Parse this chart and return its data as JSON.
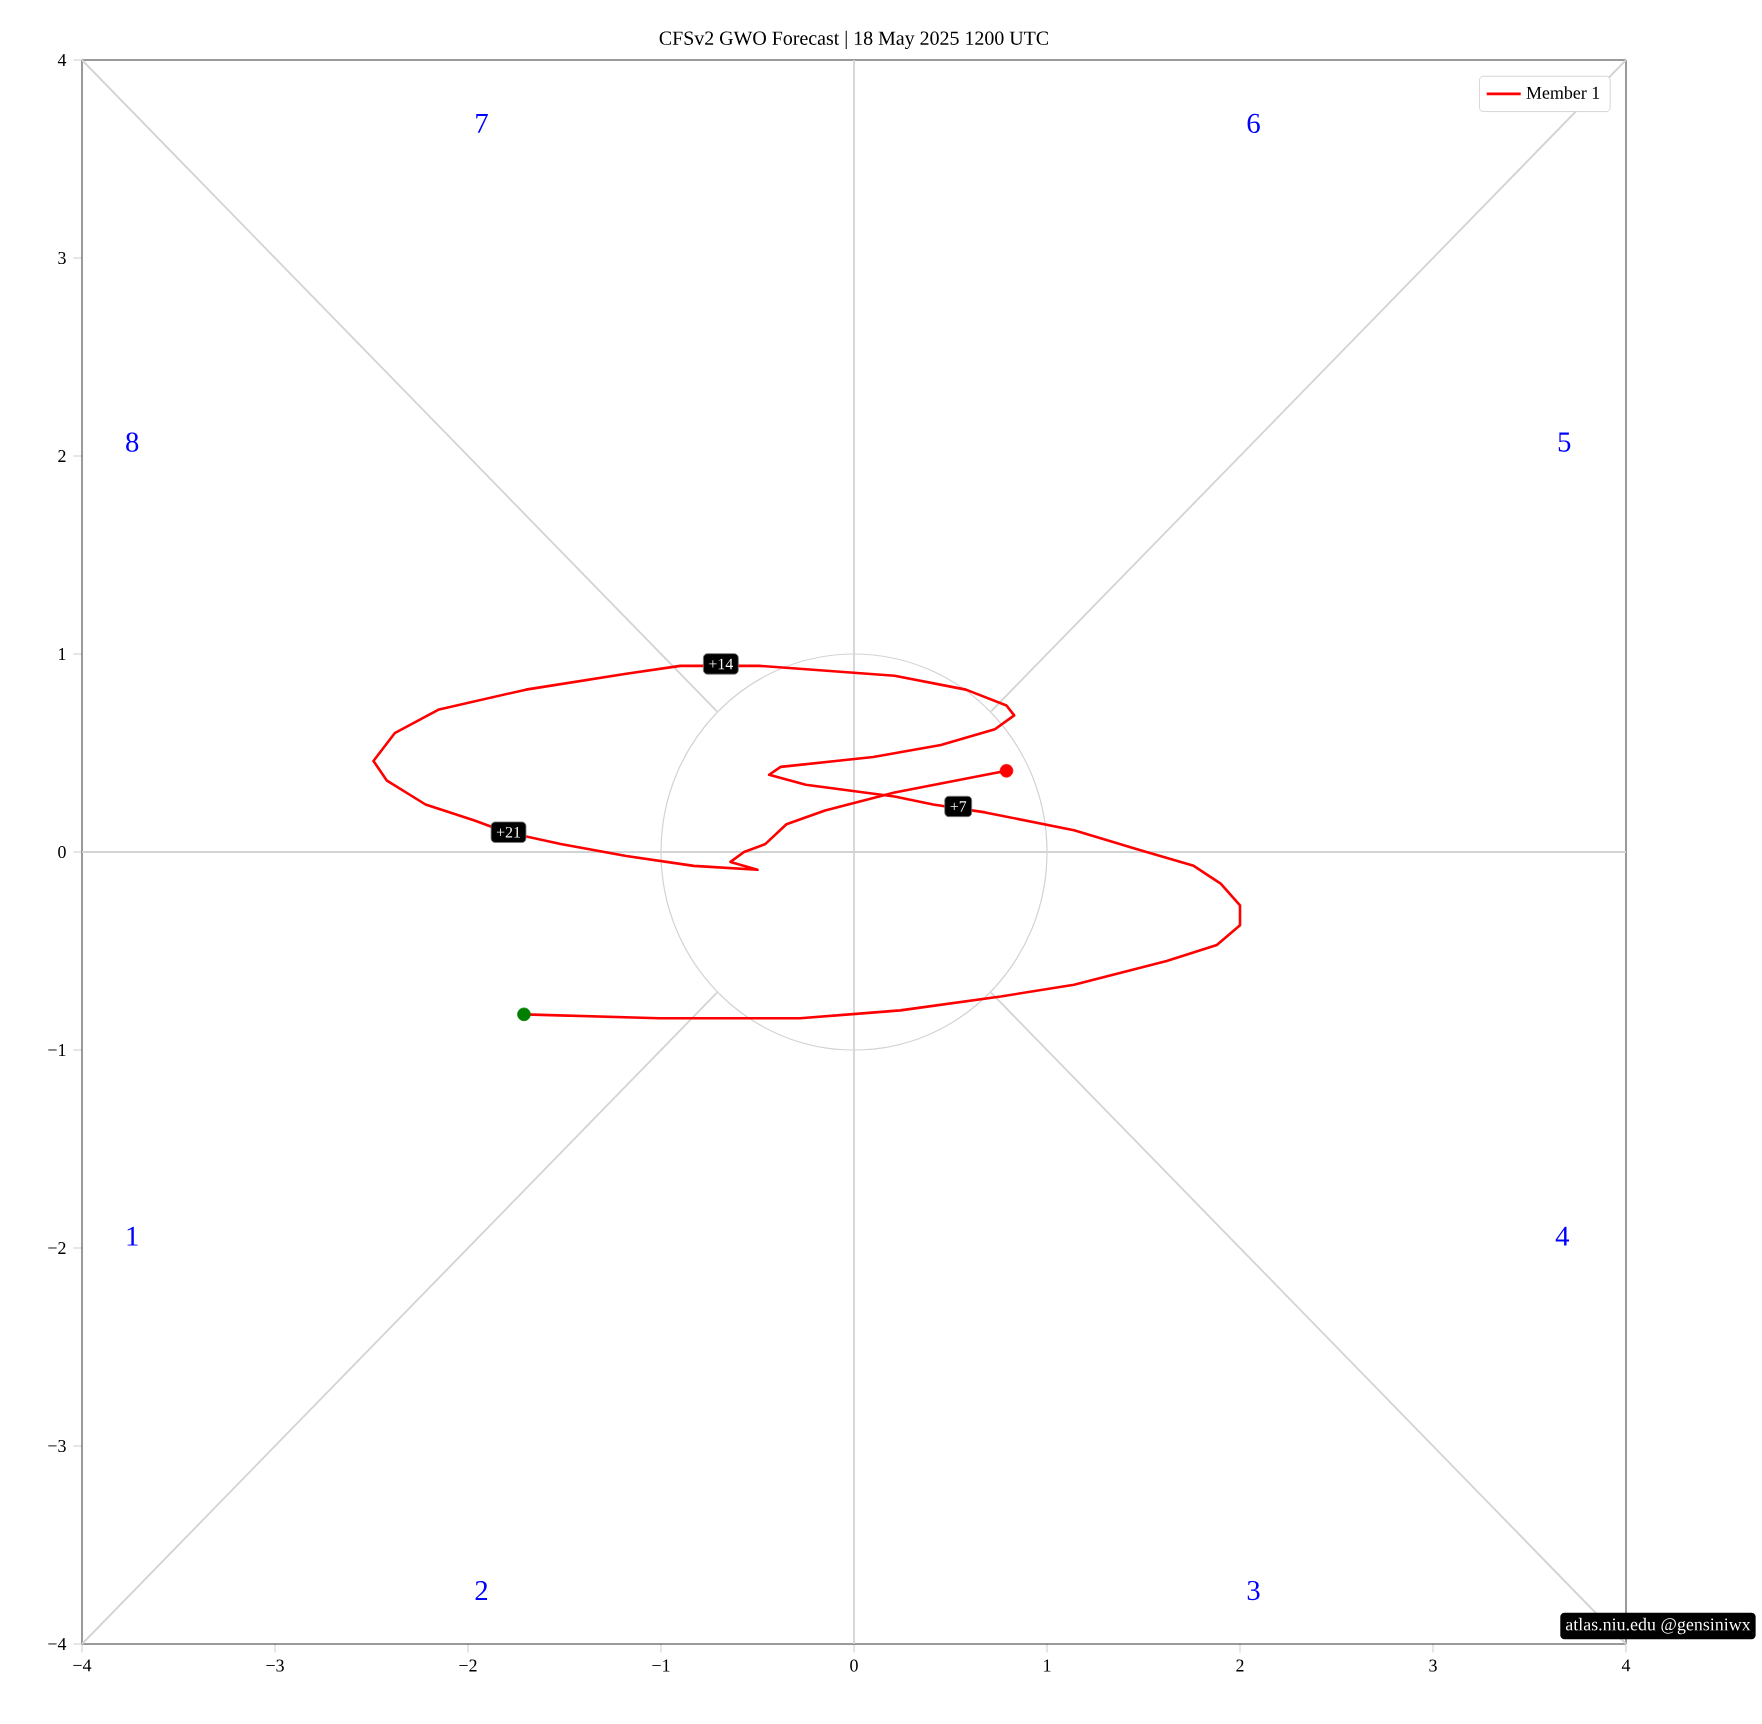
{
  "chart_data": {
    "type": "line",
    "title": "CFSv2 GWO Forecast   |   18  May  2025 1200 UTC",
    "xlim": [
      -4,
      4
    ],
    "ylim": [
      -4,
      4
    ],
    "xticks": [
      {
        "value": -4,
        "label": "−4"
      },
      {
        "value": -3,
        "label": "−3"
      },
      {
        "value": -2,
        "label": "−2"
      },
      {
        "value": -1,
        "label": "−1"
      },
      0,
      1,
      2,
      3,
      4
    ],
    "yticks": [
      {
        "value": -4,
        "label": "−4"
      },
      {
        "value": -3,
        "label": "−3"
      },
      {
        "value": -2,
        "label": "−2"
      },
      {
        "value": -1,
        "label": "−1"
      },
      0,
      1,
      2,
      3,
      4
    ],
    "grid": false,
    "legend": "top right",
    "series": [
      {
        "color": "#d3d3d3",
        "x": [
          0,
          0
        ],
        "values": [
          -4,
          4
        ]
      },
      {
        "color": "#d3d3d3",
        "x": [
          -4,
          4
        ],
        "values": [
          0,
          0
        ]
      },
      {
        "color": "#d3d3d3",
        "x": [
          -4,
          -0.71
        ],
        "values": [
          -4,
          -0.71
        ]
      },
      {
        "color": "#d3d3d3",
        "x": [
          0.71,
          4
        ],
        "values": [
          0.71,
          4
        ]
      },
      {
        "color": "#d3d3d3",
        "x": [
          -4,
          -0.71
        ],
        "values": [
          4,
          0.71
        ]
      },
      {
        "color": "#d3d3d3",
        "x": [
          0.71,
          4
        ],
        "values": [
          -0.71,
          -4
        ]
      },
      {
        "name": "Member 1",
        "color": "#ff0000",
        "line_style": "solid",
        "x": [
          -1.71,
          -1.01,
          -0.28,
          0.24,
          0.76,
          1.14,
          1.62,
          1.88,
          2.0,
          2.0,
          1.9,
          1.76,
          1.48,
          1.14,
          0.68,
          0.41,
          0.21,
          -0.25,
          -0.44,
          -0.38,
          0.1,
          0.45,
          0.73,
          0.83,
          0.79,
          0.58,
          0.21,
          -0.49,
          -0.9,
          -1.18,
          -1.7,
          -2.15,
          -2.38,
          -2.49,
          -2.42,
          -2.22,
          -1.97,
          -1.8,
          -1.52,
          -1.18,
          -0.83,
          -0.5,
          -0.64,
          -0.57,
          -0.46,
          -0.35,
          -0.15,
          0.21,
          0.79
        ],
        "values": [
          -0.82,
          -0.84,
          -0.84,
          -0.8,
          -0.73,
          -0.67,
          -0.55,
          -0.47,
          -0.37,
          -0.27,
          -0.16,
          -0.07,
          0.01,
          0.11,
          0.2,
          0.24,
          0.28,
          0.34,
          0.39,
          0.43,
          0.48,
          0.54,
          0.62,
          0.69,
          0.74,
          0.82,
          0.89,
          0.94,
          0.94,
          0.9,
          0.82,
          0.72,
          0.6,
          0.46,
          0.36,
          0.24,
          0.16,
          0.1,
          0.04,
          -0.02,
          -0.07,
          -0.09,
          -0.05,
          0.0,
          0.04,
          0.14,
          0.21,
          0.3,
          0.41
        ]
      },
      {
        "type": "scatter",
        "color": "#008000",
        "x": [
          -1.71
        ],
        "values": [
          -0.82
        ]
      },
      {
        "type": "scatter",
        "color": "#ff0000",
        "x": [
          0.79
        ],
        "values": [
          0.41
        ]
      }
    ],
    "annotations": [
      "1",
      "2",
      "3",
      "4",
      "5",
      "6",
      "7",
      "8",
      {
        "text": "+7",
        "x": 0.54,
        "y": 0.23
      },
      {
        "text": "+14",
        "x": -0.69,
        "y": 0.95
      },
      {
        "text": "+21",
        "x": -1.79,
        "y": 0.1
      },
      "atlas.niu.edu  @gensiniwx"
    ]
  }
}
